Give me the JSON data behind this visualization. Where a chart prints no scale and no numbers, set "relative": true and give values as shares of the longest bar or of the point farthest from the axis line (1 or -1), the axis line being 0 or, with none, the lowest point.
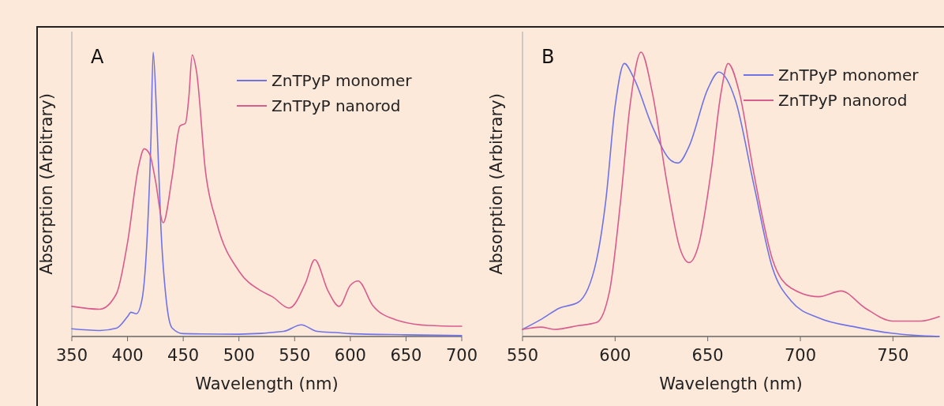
{
  "chart_data": [
    {
      "type": "line",
      "title": "A",
      "xlabel": "Wavelength (nm)",
      "ylabel": "Absorption (Arbitrary)",
      "relative": true,
      "xlim": [
        350,
        700
      ],
      "xticks": [
        350,
        400,
        450,
        500,
        550,
        600,
        650,
        700
      ],
      "legend": "top right",
      "series": [
        {
          "name": "ZnTPyP monomer",
          "color": "#6f73e6",
          "x": [
            350,
            375,
            390,
            400,
            403,
            408,
            413,
            418,
            421,
            423,
            426,
            430,
            435,
            440,
            450,
            500,
            540,
            556,
            570,
            590,
            600,
            650,
            700
          ],
          "values": [
            0.027,
            0.021,
            0.029,
            0.07,
            0.085,
            0.08,
            0.13,
            0.38,
            0.69,
            1.0,
            0.79,
            0.38,
            0.12,
            0.03,
            0.01,
            0.008,
            0.018,
            0.041,
            0.018,
            0.013,
            0.01,
            0.006,
            0.003
          ]
        },
        {
          "name": "ZnTPyP nanorod",
          "color": "#d85c8e",
          "x": [
            350,
            375,
            390,
            400,
            410,
            415,
            420,
            425,
            432,
            440,
            447,
            452,
            455,
            458,
            462,
            470,
            480,
            500,
            520,
            530,
            545,
            560,
            568,
            580,
            590,
            600,
            607,
            620,
            640,
            670,
            700
          ],
          "values": [
            0.106,
            0.096,
            0.15,
            0.33,
            0.6,
            0.66,
            0.64,
            0.55,
            0.4,
            0.56,
            0.74,
            0.75,
            0.84,
            0.99,
            0.93,
            0.58,
            0.4,
            0.23,
            0.16,
            0.14,
            0.1,
            0.19,
            0.27,
            0.16,
            0.106,
            0.18,
            0.195,
            0.11,
            0.06,
            0.039,
            0.036
          ]
        }
      ]
    },
    {
      "type": "line",
      "title": "B",
      "xlabel": "Wavelength (nm)",
      "ylabel": "Absorption (Arbitrary)",
      "relative": true,
      "xlim": [
        550,
        775
      ],
      "xticks": [
        550,
        600,
        650,
        700,
        750
      ],
      "legend": "top right",
      "series": [
        {
          "name": "ZnTPyP monomer",
          "color": "#6f73e6",
          "x": [
            550,
            560,
            570,
            580,
            590,
            595,
            600,
            605,
            610,
            620,
            630,
            634,
            640,
            650,
            656,
            665,
            675,
            685,
            695,
            710,
            730,
            750,
            775
          ],
          "values": [
            0.025,
            0.06,
            0.1,
            0.12,
            0.27,
            0.48,
            0.81,
            0.96,
            0.91,
            0.74,
            0.62,
            0.61,
            0.67,
            0.87,
            0.93,
            0.83,
            0.53,
            0.24,
            0.125,
            0.065,
            0.033,
            0.011,
            0
          ]
        },
        {
          "name": "ZnTPyP nanorod",
          "color": "#d85c8e",
          "x": [
            550,
            560,
            567,
            580,
            590,
            597,
            603,
            608,
            614,
            620,
            628,
            635,
            640,
            645,
            652,
            657,
            661,
            667,
            675,
            685,
            695,
            710,
            722,
            735,
            750,
            765,
            775
          ],
          "values": [
            0.025,
            0.033,
            0.025,
            0.038,
            0.049,
            0.16,
            0.48,
            0.81,
            1.0,
            0.86,
            0.54,
            0.31,
            0.26,
            0.32,
            0.59,
            0.85,
            0.96,
            0.86,
            0.57,
            0.27,
            0.17,
            0.14,
            0.16,
            0.1,
            0.054,
            0.054,
            0.07
          ]
        }
      ]
    }
  ]
}
